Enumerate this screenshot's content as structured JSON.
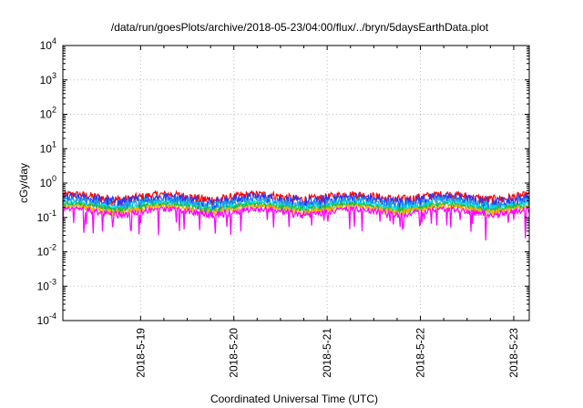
{
  "chart_data": {
    "type": "line",
    "title": "/data/run/goesPlots/archive/2018-05-23/04:00/flux/../bryn/5daysEarthData.plot",
    "xlabel": "Coordinated Universal Time (UTC)",
    "ylabel": "cGy/day",
    "y_scale": "log",
    "ylim": [
      0.0001,
      10000
    ],
    "y_ticks": [
      {
        "base": "10",
        "exp": "-4"
      },
      {
        "base": "10",
        "exp": "-3"
      },
      {
        "base": "10",
        "exp": "-2"
      },
      {
        "base": "10",
        "exp": "-1"
      },
      {
        "base": "10",
        "exp": "0"
      },
      {
        "base": "10",
        "exp": "1"
      },
      {
        "base": "10",
        "exp": "2"
      },
      {
        "base": "10",
        "exp": "3"
      },
      {
        "base": "10",
        "exp": "4"
      }
    ],
    "xlim": [
      "2018-05-18 04:00",
      "2018-05-23 04:00"
    ],
    "x_ticks": [
      "2018-5-19",
      "2018-5-20",
      "2018-5-21",
      "2018-5-22",
      "2018-5-23"
    ],
    "grid": true,
    "legend": "none",
    "series": [
      {
        "color": "#ff0000",
        "base": 0.4,
        "noise": 0.12
      },
      {
        "color": "#1f3cff",
        "base": 0.33,
        "noise": 0.13
      },
      {
        "color": "#1a9fe6",
        "base": 0.27,
        "noise": 0.08
      },
      {
        "color": "#00e5e5",
        "base": 0.22,
        "noise": 0.05
      },
      {
        "color": "#2db82d",
        "base": 0.2,
        "noise": 0.04
      },
      {
        "color": "#ffb000",
        "base": 0.175,
        "noise": 0.035
      },
      {
        "color": "#ff00ff",
        "base": 0.15,
        "noise": 0.03,
        "dips": [
          0.06,
          0.02
        ]
      }
    ],
    "approx_points_per_series": 600
  }
}
